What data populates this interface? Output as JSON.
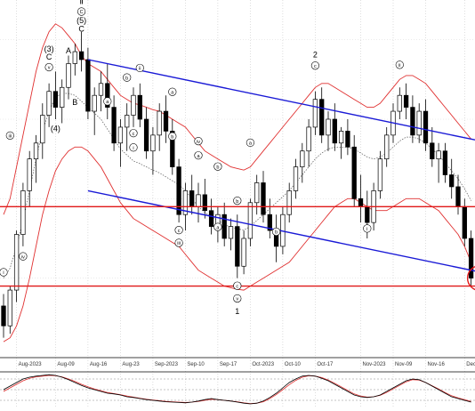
{
  "chart_data": {
    "type": "candlestick",
    "grid": true,
    "x_ticks": [
      "Aug-2023",
      "Aug-09",
      "Aug-16",
      "Aug-23",
      "Sep-2023",
      "Sep-10",
      "Sep-17",
      "Oct-2023",
      "Oct-10",
      "Oct-17",
      "Nov-2023",
      "Nov-09",
      "Nov-16",
      "Dec-"
    ],
    "ohlc_approx": [
      [
        1.2665,
        1.268,
        1.2625,
        1.264
      ],
      [
        1.264,
        1.269,
        1.263,
        1.2685
      ],
      [
        1.2685,
        1.276,
        1.267,
        1.2755
      ],
      [
        1.2755,
        1.282,
        1.274,
        1.281
      ],
      [
        1.281,
        1.286,
        1.279,
        1.285
      ],
      [
        1.285,
        1.288,
        1.282,
        1.287
      ],
      [
        1.287,
        1.292,
        1.285,
        1.2905
      ],
      [
        1.2905,
        1.2945,
        1.289,
        1.2935
      ],
      [
        1.2935,
        1.296,
        1.29,
        1.2915
      ],
      [
        1.2915,
        1.295,
        1.2895,
        1.294
      ],
      [
        1.294,
        1.298,
        1.2925,
        1.297
      ],
      [
        1.297,
        1.2995,
        1.2955,
        1.2985
      ],
      [
        1.2985,
        1.301,
        1.296,
        1.2975
      ],
      [
        1.2975,
        1.299,
        1.29,
        1.291
      ],
      [
        1.291,
        1.294,
        1.288,
        1.293
      ],
      [
        1.293,
        1.296,
        1.291,
        1.2945
      ],
      [
        1.2945,
        1.297,
        1.29,
        1.2915
      ],
      [
        1.2915,
        1.293,
        1.286,
        1.287
      ],
      [
        1.287,
        1.29,
        1.284,
        1.289
      ],
      [
        1.289,
        1.292,
        1.286,
        1.2905
      ],
      [
        1.2905,
        1.294,
        1.289,
        1.293
      ],
      [
        1.293,
        1.2945,
        1.289,
        1.29
      ],
      [
        1.29,
        1.2915,
        1.285,
        1.286
      ],
      [
        1.286,
        1.289,
        1.283,
        1.288
      ],
      [
        1.288,
        1.292,
        1.286,
        1.291
      ],
      [
        1.291,
        1.293,
        1.287,
        1.2885
      ],
      [
        1.2885,
        1.29,
        1.283,
        1.284
      ],
      [
        1.284,
        1.285,
        1.277,
        1.278
      ],
      [
        1.278,
        1.282,
        1.276,
        1.281
      ],
      [
        1.281,
        1.283,
        1.278,
        1.279
      ],
      [
        1.279,
        1.282,
        1.277,
        1.2805
      ],
      [
        1.2805,
        1.2825,
        1.2775,
        1.2785
      ],
      [
        1.2785,
        1.28,
        1.2755,
        1.2765
      ],
      [
        1.2765,
        1.279,
        1.2745,
        1.278
      ],
      [
        1.278,
        1.2795,
        1.274,
        1.275
      ],
      [
        1.275,
        1.2775,
        1.2735,
        1.2765
      ],
      [
        1.2765,
        1.278,
        1.27,
        1.2715
      ],
      [
        1.2715,
        1.276,
        1.2705,
        1.275
      ],
      [
        1.275,
        1.28,
        1.274,
        1.2795
      ],
      [
        1.2795,
        1.283,
        1.278,
        1.282
      ],
      [
        1.282,
        1.2835,
        1.277,
        1.278
      ],
      [
        1.278,
        1.28,
        1.275,
        1.276
      ],
      [
        1.276,
        1.278,
        1.272,
        1.274
      ],
      [
        1.274,
        1.279,
        1.273,
        1.278
      ],
      [
        1.278,
        1.282,
        1.277,
        1.281
      ],
      [
        1.281,
        1.285,
        1.28,
        1.284
      ],
      [
        1.284,
        1.287,
        1.282,
        1.286
      ],
      [
        1.286,
        1.29,
        1.284,
        1.289
      ],
      [
        1.289,
        1.2935,
        1.288,
        1.2925
      ],
      [
        1.2925,
        1.294,
        1.287,
        1.288
      ],
      [
        1.288,
        1.291,
        1.286,
        1.29
      ],
      [
        1.29,
        1.292,
        1.286,
        1.287
      ],
      [
        1.287,
        1.289,
        1.285,
        1.2885
      ],
      [
        1.2885,
        1.29,
        1.2855,
        1.2865
      ],
      [
        1.2865,
        1.288,
        1.279,
        1.28
      ],
      [
        1.28,
        1.283,
        1.277,
        1.279
      ],
      [
        1.279,
        1.281,
        1.275,
        1.277
      ],
      [
        1.277,
        1.282,
        1.276,
        1.281
      ],
      [
        1.281,
        1.286,
        1.28,
        1.285
      ],
      [
        1.285,
        1.289,
        1.284,
        1.288
      ],
      [
        1.288,
        1.292,
        1.287,
        1.291
      ],
      [
        1.291,
        1.294,
        1.29,
        1.293
      ],
      [
        1.293,
        1.2945,
        1.29,
        1.2915
      ],
      [
        1.2915,
        1.293,
        1.287,
        1.288
      ],
      [
        1.288,
        1.292,
        1.287,
        1.291
      ],
      [
        1.291,
        1.2925,
        1.286,
        1.287
      ],
      [
        1.287,
        1.289,
        1.284,
        1.285
      ],
      [
        1.285,
        1.287,
        1.282,
        1.286
      ],
      [
        1.286,
        1.287,
        1.282,
        1.283
      ],
      [
        1.283,
        1.285,
        1.28,
        1.2815
      ],
      [
        1.2815,
        1.283,
        1.278,
        1.279
      ],
      [
        1.279,
        1.28,
        1.274,
        1.275
      ],
      [
        1.275,
        1.276,
        1.269,
        1.27
      ]
    ],
    "upper_band": [
      1.278,
      1.28,
      1.284,
      1.288,
      1.292,
      1.296,
      1.299,
      1.301,
      1.302,
      1.3015,
      1.3005,
      1.2995,
      1.298,
      1.297,
      1.2965,
      1.296,
      1.295,
      1.294,
      1.293,
      1.2925,
      1.292,
      1.2918,
      1.2915,
      1.2912,
      1.291,
      1.2905,
      1.29,
      1.2895,
      1.289,
      1.288,
      1.287,
      1.286,
      1.2855,
      1.285,
      1.2845,
      1.284,
      1.2838,
      1.2836,
      1.284,
      1.285,
      1.286,
      1.287,
      1.288,
      1.289,
      1.29,
      1.291,
      1.292,
      1.293,
      1.294,
      1.2945,
      1.2945,
      1.294,
      1.2935,
      1.293,
      1.2925,
      1.292,
      1.2915,
      1.2915,
      1.292,
      1.293,
      1.294,
      1.295,
      1.2955,
      1.2955,
      1.295,
      1.2945,
      1.2935,
      1.2925,
      1.2915,
      1.2905,
      1.2895,
      1.2885,
      1.2875
    ],
    "lower_band": [
      1.262,
      1.2625,
      1.264,
      1.2665,
      1.27,
      1.274,
      1.278,
      1.281,
      1.2835,
      1.285,
      1.286,
      1.2865,
      1.2865,
      1.286,
      1.285,
      1.284,
      1.2825,
      1.281,
      1.2795,
      1.2785,
      1.2775,
      1.277,
      1.2765,
      1.276,
      1.2755,
      1.275,
      1.2745,
      1.274,
      1.273,
      1.272,
      1.271,
      1.2705,
      1.27,
      1.2695,
      1.269,
      1.2688,
      1.2686,
      1.2685,
      1.269,
      1.2695,
      1.27,
      1.2705,
      1.271,
      1.2715,
      1.272,
      1.273,
      1.274,
      1.275,
      1.276,
      1.277,
      1.278,
      1.279,
      1.2795,
      1.28,
      1.28,
      1.2795,
      1.279,
      1.2785,
      1.2785,
      1.2785,
      1.279,
      1.2795,
      1.28,
      1.28,
      1.28,
      1.2795,
      1.279,
      1.2785,
      1.2775,
      1.2765,
      1.2755,
      1.274,
      1.272
    ],
    "horizontal_levels": [
      1.279,
      1.269
    ],
    "channel_upper": [
      [
        13,
        1.2975
      ],
      [
        72,
        1.2875
      ]
    ],
    "channel_lower": [
      [
        13,
        1.281
      ],
      [
        72,
        1.271
      ]
    ],
    "circle_marker": [
      72,
      1.27
    ],
    "oscillator": {
      "levels": [
        80,
        50,
        20
      ],
      "k": [
        50,
        60,
        70,
        80,
        85,
        88,
        90,
        92,
        90,
        85,
        78,
        70,
        62,
        55,
        50,
        45,
        40,
        38,
        35,
        30,
        28,
        25,
        22,
        20,
        18,
        16,
        15,
        14,
        13,
        15,
        18,
        22,
        25,
        22,
        20,
        18,
        15,
        12,
        10,
        12,
        18,
        28,
        40,
        55,
        70,
        80,
        88,
        90,
        88,
        82,
        75,
        65,
        55,
        45,
        35,
        30,
        28,
        30,
        35,
        45,
        55,
        65,
        75,
        80,
        78,
        70,
        60,
        50,
        40,
        30,
        25,
        20,
        15
      ],
      "d": [
        45,
        55,
        65,
        75,
        82,
        86,
        88,
        90,
        89,
        86,
        80,
        73,
        65,
        58,
        52,
        47,
        42,
        39,
        36,
        32,
        29,
        26,
        23,
        21,
        19,
        17,
        16,
        15,
        14,
        15,
        17,
        20,
        23,
        22,
        20,
        18,
        16,
        13,
        11,
        12,
        16,
        25,
        36,
        50,
        64,
        76,
        85,
        89,
        88,
        84,
        77,
        68,
        58,
        48,
        38,
        32,
        29,
        30,
        34,
        42,
        52,
        62,
        72,
        78,
        77,
        70,
        61,
        52,
        42,
        33,
        27,
        22,
        17
      ]
    }
  },
  "wave_labels": [
    {
      "text": "Ⅱ",
      "i": 12,
      "p": 1.3045
    },
    {
      "text": "C",
      "i": 12,
      "p": 1.3033,
      "circled": true
    },
    {
      "text": "(5)",
      "i": 12,
      "p": 1.3021
    },
    {
      "text": "C",
      "i": 12,
      "p": 1.301
    },
    {
      "text": "(3)",
      "i": 7,
      "p": 1.2985
    },
    {
      "text": "C",
      "i": 7,
      "p": 1.2975
    },
    {
      "text": "v",
      "i": 7,
      "p": 1.2963,
      "circled": true
    },
    {
      "text": "A",
      "i": 10,
      "p": 1.2983
    },
    {
      "text": "B",
      "i": 11,
      "p": 1.2918
    },
    {
      "text": "(4)",
      "i": 8,
      "p": 1.2885
    },
    {
      "text": "iii",
      "i": 1,
      "p": 1.2877,
      "circled": true
    },
    {
      "text": "iv",
      "i": 3,
      "p": 1.2725,
      "circled": true
    },
    {
      "text": "i",
      "i": 0,
      "p": 1.2705,
      "circled": true
    },
    {
      "text": "a",
      "i": 16,
      "p": 1.292,
      "circled": true
    },
    {
      "text": "b",
      "i": 19,
      "p": 1.295,
      "circled": true
    },
    {
      "text": "ii",
      "i": 21,
      "p": 1.2962,
      "circled": true
    },
    {
      "text": "c",
      "i": 20,
      "p": 1.288,
      "circled": true
    },
    {
      "text": "i",
      "i": 20,
      "p": 1.2862,
      "circled": true
    },
    {
      "text": "a",
      "i": 26,
      "p": 1.2932,
      "circled": true
    },
    {
      "text": "b",
      "i": 26,
      "p": 1.2876,
      "circled": true
    },
    {
      "text": "iv",
      "i": 30,
      "p": 1.287,
      "circled": true
    },
    {
      "text": "a",
      "i": 30,
      "p": 1.2852,
      "circled": true
    },
    {
      "text": "b",
      "i": 33,
      "p": 1.2838,
      "circled": true
    },
    {
      "text": "c",
      "i": 27,
      "p": 1.2758,
      "circled": true
    },
    {
      "text": "iii",
      "i": 27,
      "p": 1.2742,
      "circled": true
    },
    {
      "text": "a",
      "i": 33,
      "p": 1.2762,
      "circled": true
    },
    {
      "text": "b",
      "i": 36,
      "p": 1.2795,
      "circled": true
    },
    {
      "text": "a",
      "i": 38,
      "p": 1.2868,
      "circled": true
    },
    {
      "text": "c",
      "i": 36,
      "p": 1.2688,
      "circled": true
    },
    {
      "text": "v",
      "i": 36,
      "p": 1.2672,
      "circled": true
    },
    {
      "text": "1",
      "i": 36,
      "p": 1.2655
    },
    {
      "text": "b",
      "i": 42,
      "p": 1.2756,
      "circled": true
    },
    {
      "text": "2",
      "i": 48,
      "p": 1.2978
    },
    {
      "text": "c",
      "i": 48,
      "p": 1.2965,
      "circled": true
    },
    {
      "text": "i",
      "i": 56,
      "p": 1.276,
      "circled": true
    },
    {
      "text": "ii",
      "i": 61,
      "p": 1.2966,
      "circled": true
    }
  ]
}
